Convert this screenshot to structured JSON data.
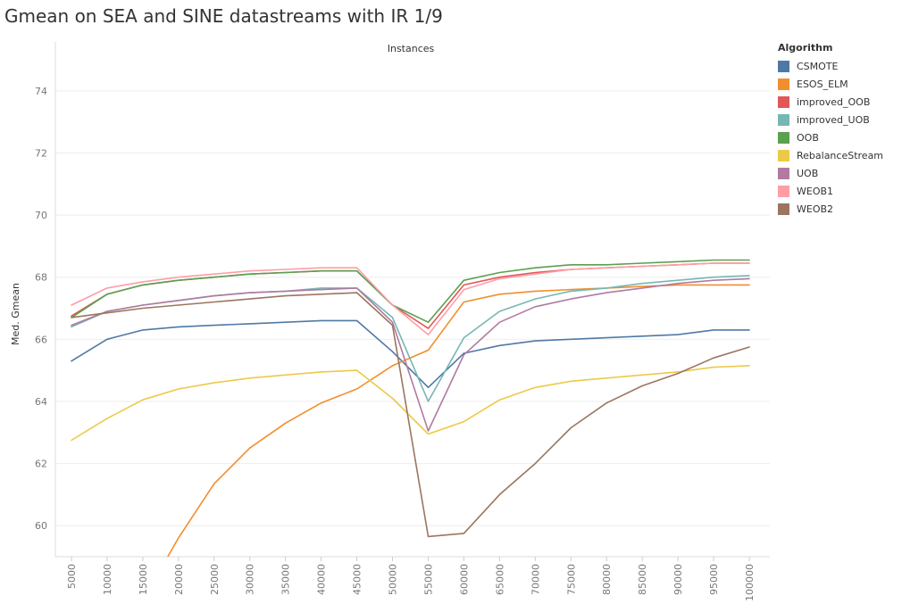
{
  "title": "Gmean on SEA and SINE datastreams with IR 1/9",
  "legend": {
    "title": "Algorithm"
  },
  "chart_data": {
    "type": "line",
    "title": "Gmean on SEA and SINE datastreams with IR 1/9",
    "xlabel": "Instances",
    "ylabel": "Med. Gmean",
    "x": [
      5000,
      10000,
      15000,
      20000,
      25000,
      30000,
      35000,
      40000,
      45000,
      50000,
      55000,
      60000,
      65000,
      70000,
      75000,
      80000,
      85000,
      90000,
      95000,
      100000
    ],
    "x_tick_labels": [
      "5000",
      "10000",
      "15000",
      "20000",
      "25000",
      "30000",
      "35000",
      "40000",
      "45000",
      "50000",
      "55000",
      "60000",
      "65000",
      "70000",
      "75000",
      "80000",
      "85000",
      "90000",
      "95000",
      "100000"
    ],
    "ylim": [
      59,
      75
    ],
    "y_ticks": [
      60,
      62,
      64,
      66,
      68,
      70,
      72,
      74
    ],
    "y_tick_labels": [
      "60",
      "62",
      "64",
      "66",
      "68",
      "70",
      "72",
      "74"
    ],
    "grid": true,
    "legend_position": "right",
    "series": [
      {
        "name": "CSMOTE",
        "color": "#4e79a7",
        "values": [
          65.3,
          66.0,
          66.3,
          66.4,
          66.45,
          66.5,
          66.55,
          66.6,
          66.6,
          65.6,
          64.45,
          65.55,
          65.8,
          65.95,
          66.0,
          66.05,
          66.1,
          66.15,
          66.3,
          66.3
        ]
      },
      {
        "name": "ESOS_ELM",
        "color": "#f28e2b",
        "values": [
          null,
          null,
          null,
          59.6,
          61.35,
          62.5,
          63.3,
          63.95,
          64.4,
          65.15,
          65.65,
          67.2,
          67.45,
          67.55,
          67.6,
          67.65,
          67.7,
          67.75,
          67.75,
          67.75
        ],
        "clip_start": [
          18500,
          59.0
        ]
      },
      {
        "name": "improved_OOB",
        "color": "#e15759",
        "values": [
          66.75,
          67.45,
          67.75,
          67.9,
          68.0,
          68.1,
          68.15,
          68.2,
          68.2,
          67.1,
          66.35,
          67.75,
          68.0,
          68.15,
          68.25,
          68.3,
          68.35,
          68.4,
          68.45,
          68.45
        ]
      },
      {
        "name": "improved_UOB",
        "color": "#76b7b2",
        "values": [
          66.4,
          66.9,
          67.1,
          67.25,
          67.4,
          67.5,
          67.55,
          67.65,
          67.65,
          66.7,
          64.0,
          66.05,
          66.9,
          67.3,
          67.55,
          67.65,
          67.8,
          67.9,
          68.0,
          68.05
        ]
      },
      {
        "name": "OOB",
        "color": "#59a14f",
        "values": [
          66.7,
          67.45,
          67.75,
          67.9,
          68.0,
          68.1,
          68.15,
          68.2,
          68.2,
          67.1,
          66.55,
          67.9,
          68.15,
          68.3,
          68.4,
          68.4,
          68.45,
          68.5,
          68.55,
          68.55
        ]
      },
      {
        "name": "RebalanceStream",
        "color": "#edc948",
        "values": [
          62.75,
          63.45,
          64.05,
          64.4,
          64.6,
          64.75,
          64.85,
          64.95,
          65.0,
          64.1,
          62.95,
          63.35,
          64.05,
          64.45,
          64.65,
          64.75,
          64.85,
          64.95,
          65.1,
          65.15
        ]
      },
      {
        "name": "UOB",
        "color": "#b07aa1",
        "values": [
          66.45,
          66.9,
          67.1,
          67.25,
          67.4,
          67.5,
          67.55,
          67.6,
          67.65,
          66.55,
          63.05,
          65.5,
          66.55,
          67.05,
          67.3,
          67.5,
          67.65,
          67.8,
          67.9,
          67.95
        ]
      },
      {
        "name": "WEOB1",
        "color": "#ff9da7",
        "values": [
          67.1,
          67.65,
          67.85,
          68.0,
          68.1,
          68.2,
          68.25,
          68.3,
          68.3,
          67.1,
          66.15,
          67.6,
          67.95,
          68.1,
          68.25,
          68.3,
          68.35,
          68.4,
          68.45,
          68.45
        ]
      },
      {
        "name": "WEOB2",
        "color": "#9c755f",
        "values": [
          66.7,
          66.85,
          67.0,
          67.1,
          67.2,
          67.3,
          67.4,
          67.45,
          67.5,
          66.45,
          59.65,
          59.75,
          61.0,
          62.0,
          63.15,
          63.95,
          64.5,
          64.9,
          65.4,
          65.75
        ]
      }
    ]
  }
}
